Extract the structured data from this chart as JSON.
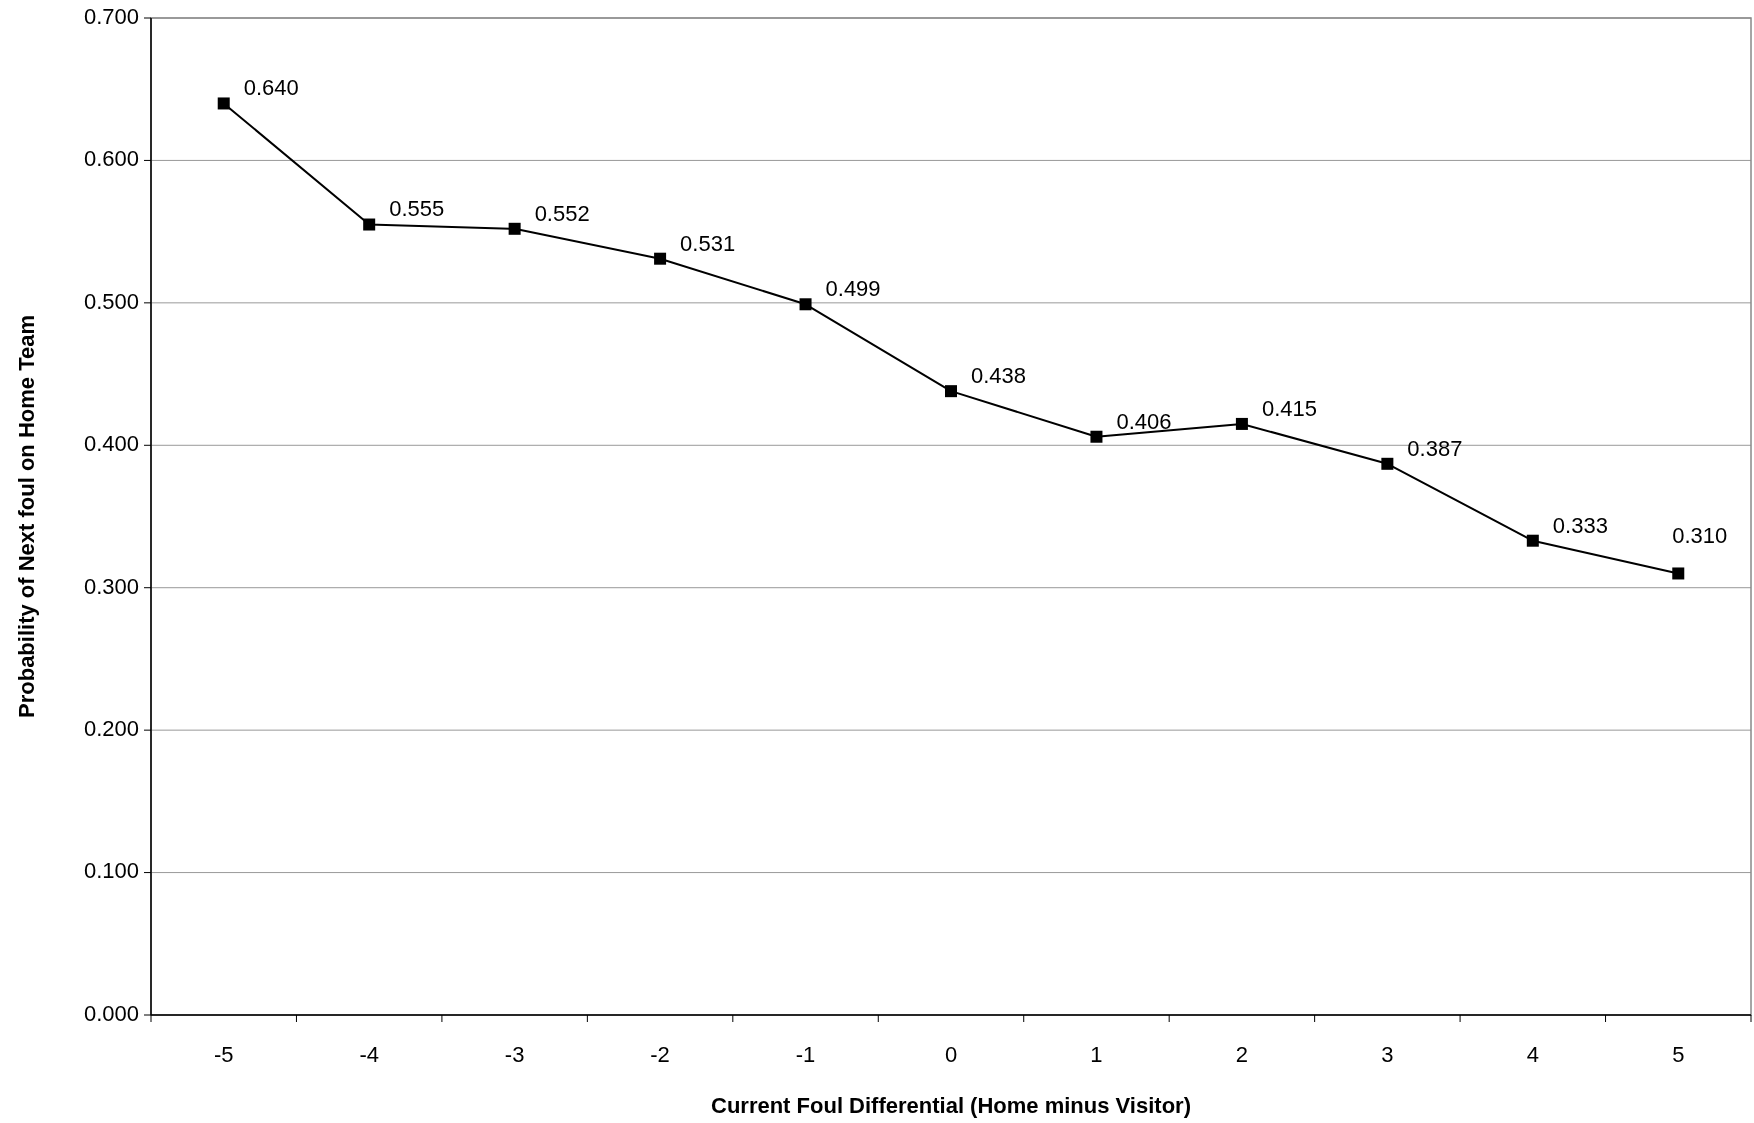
{
  "chart_data": {
    "type": "line",
    "xlabel": "Current Foul Differential (Home minus Visitor)",
    "ylabel": "Probability of Next foul on Home Team",
    "categories": [
      "-5",
      "-4",
      "-3",
      "-2",
      "-1",
      "0",
      "1",
      "2",
      "3",
      "4",
      "5"
    ],
    "series": [
      {
        "color": "#000000",
        "values": [
          0.64,
          0.555,
          0.552,
          0.531,
          0.499,
          0.438,
          0.406,
          0.415,
          0.387,
          0.333,
          0.31
        ],
        "value_labels": [
          "0.640",
          "0.555",
          "0.552",
          "0.531",
          "0.499",
          "0.438",
          "0.406",
          "0.415",
          "0.387",
          "0.333",
          "0.310"
        ]
      }
    ],
    "ylim": [
      0,
      0.7
    ],
    "yticks": [
      {
        "value": 0,
        "label": "0.000"
      },
      {
        "value": 0.1,
        "label": "0.100"
      },
      {
        "value": 0.2,
        "label": "0.200"
      },
      {
        "value": 0.3,
        "label": "0.300"
      },
      {
        "value": 0.4,
        "label": "0.400"
      },
      {
        "value": 0.5,
        "label": "0.500"
      },
      {
        "value": 0.6,
        "label": "0.600"
      },
      {
        "value": 0.7,
        "label": "0.700"
      }
    ],
    "grid": "y",
    "marker": "square",
    "line_style": "solid"
  }
}
